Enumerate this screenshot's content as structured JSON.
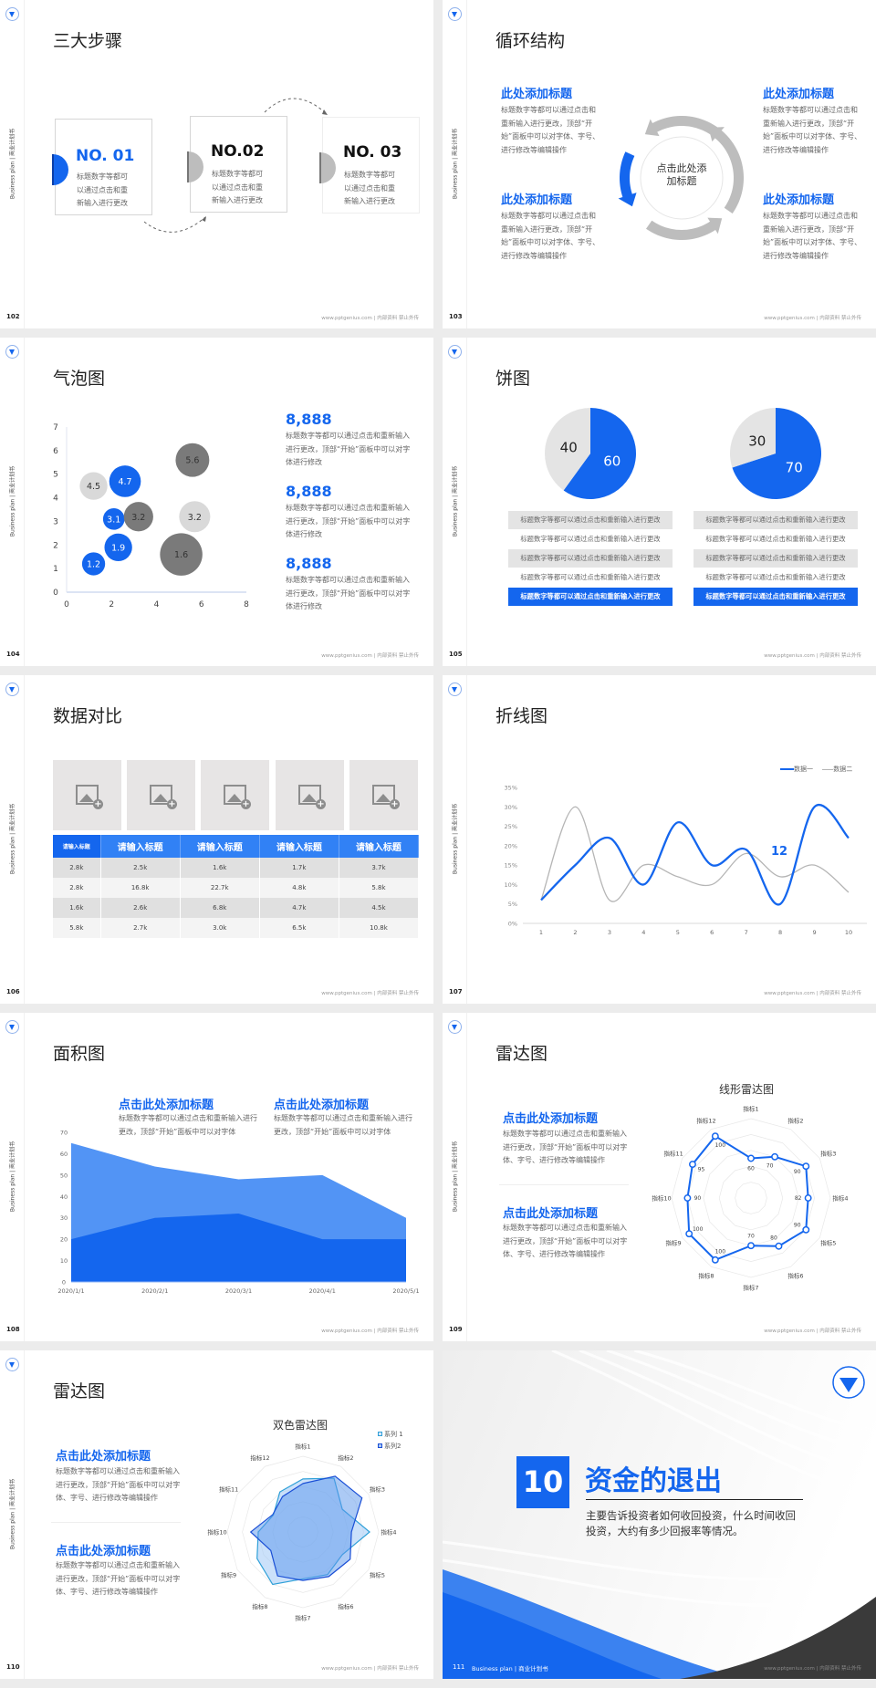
{
  "common": {
    "side_label": "Business plan | 商业计划书",
    "footer": "www.pptgenius.com | 内部资料 禁止外传",
    "colors": {
      "brand_blue": "#1466ee",
      "gray": "#c8c8c8",
      "dark_gray": "#7a7a7a",
      "page_bg": "#ececec"
    },
    "icons": [
      "university-logo-icon",
      "image-placeholder-icon"
    ]
  },
  "s102": {
    "page": "102",
    "title": "三大步骤",
    "steps": [
      {
        "no": "NO. 01",
        "desc": "标题数字等都可以通过点击和重新输入进行更改",
        "active": true
      },
      {
        "no": "NO.02",
        "desc": "标题数字等都可以通过点击和重新输入进行更改",
        "active": false
      },
      {
        "no": "NO. 03",
        "desc": "标题数字等都可以通过点击和重新输入进行更改",
        "active": false
      }
    ]
  },
  "s103": {
    "page": "103",
    "title": "循环结构",
    "center": "点击此处添加标题",
    "blocks": [
      {
        "heading": "此处添加标题",
        "text": "标题数字等都可以通过点击和重新输入进行更改，顶部“开始”面板中可以对字体、字号、进行修改等编辑操作"
      },
      {
        "heading": "此处添加标题",
        "text": "标题数字等都可以通过点击和重新输入进行更改，顶部“开始”面板中可以对字体、字号、进行修改等编辑操作"
      },
      {
        "heading": "此处添加标题",
        "text": "标题数字等都可以通过点击和重新输入进行更改，顶部“开始”面板中可以对字体、字号、进行修改等编辑操作"
      },
      {
        "heading": "此处添加标题",
        "text": "标题数字等都可以通过点击和重新输入进行更改，顶部“开始”面板中可以对字体、字号、进行修改等编辑操作"
      }
    ]
  },
  "s104": {
    "page": "104",
    "title": "气泡图",
    "stats": [
      {
        "value": "8,888",
        "text": "标题数字等都可以通过点击和重新输入进行更改，顶部“开始”面板中可以对字体进行修改"
      },
      {
        "value": "8,888",
        "text": "标题数字等都可以通过点击和重新输入进行更改，顶部“开始”面板中可以对字体进行修改"
      },
      {
        "value": "8,888",
        "text": "标题数字等都可以通过点击和重新输入进行更改，顶部“开始”面板中可以对字体进行修改"
      }
    ]
  },
  "s105": {
    "page": "105",
    "title": "饼图",
    "lists": [
      [
        "标题数字等都可以通过点击和重新输入进行更改",
        "标题数字等都可以通过点击和重新输入进行更改",
        "标题数字等都可以通过点击和重新输入进行更改",
        "标题数字等都可以通过点击和重新输入进行更改",
        "标题数字等都可以通过点击和重新输入进行更改"
      ],
      [
        "标题数字等都可以通过点击和重新输入进行更改",
        "标题数字等都可以通过点击和重新输入进行更改",
        "标题数字等都可以通过点击和重新输入进行更改",
        "标题数字等都可以通过点击和重新输入进行更改",
        "标题数字等都可以通过点击和重新输入进行更改"
      ]
    ]
  },
  "s106": {
    "page": "106",
    "title": "数据对比",
    "headers": [
      "请输入标题",
      "请输入标题",
      "请输入标题",
      "请输入标题",
      "请输入标题"
    ],
    "rows": [
      [
        "2.8k",
        "2.5k",
        "1.6k",
        "1.7k",
        "3.7k"
      ],
      [
        "2.8k",
        "16.8k",
        "22.7k",
        "4.8k",
        "5.8k"
      ],
      [
        "1.6k",
        "2.6k",
        "6.8k",
        "4.7k",
        "4.5k"
      ],
      [
        "5.8k",
        "2.7k",
        "3.0k",
        "6.5k",
        "10.8k"
      ]
    ]
  },
  "s107": {
    "page": "107",
    "title": "折线图",
    "annotation": "12"
  },
  "s108": {
    "page": "108",
    "title": "面积图",
    "blocks": [
      {
        "heading": "点击此处添加标题",
        "text": "标题数字等都可以通过点击和重新输入进行更改，顶部“开始”面板中可以对字体"
      },
      {
        "heading": "点击此处添加标题",
        "text": "标题数字等都可以通过点击和重新输入进行更改，顶部“开始”面板中可以对字体"
      }
    ]
  },
  "s109": {
    "page": "109",
    "title": "雷达图",
    "blocks": [
      {
        "heading": "点击此处添加标题",
        "text": "标题数字等都可以通过点击和重新输入进行更改，顶部“开始”面板中可以对字体、字号、进行修改等编辑操作"
      },
      {
        "heading": "点击此处添加标题",
        "text": "标题数字等都可以通过点击和重新输入进行更改，顶部“开始”面板中可以对字体、字号、进行修改等编辑操作"
      }
    ]
  },
  "s110": {
    "page": "110",
    "title": "雷达图",
    "blocks": [
      {
        "heading": "点击此处添加标题",
        "text": "标题数字等都可以通过点击和重新输入进行更改，顶部“开始”面板中可以对字体、字号、进行修改等编辑操作"
      },
      {
        "heading": "点击此处添加标题",
        "text": "标题数字等都可以通过点击和重新输入进行更改，顶部“开始”面板中可以对字体、字号、进行修改等编辑操作"
      }
    ]
  },
  "s111": {
    "page": "111",
    "number": "10",
    "title": "资金的退出",
    "desc": "主要告诉投资者如何收回投资，什么时间收回投资，大约有多少回报率等情况。",
    "footer_label": "Business plan | 商业计划书"
  },
  "chart_data": [
    {
      "type": "scatter",
      "subtype": "bubble",
      "xlim": [
        0,
        8
      ],
      "ylim": [
        0,
        7
      ],
      "xticks": [
        0,
        2,
        4,
        6,
        8
      ],
      "yticks": [
        0,
        1,
        2,
        3,
        4,
        5,
        6,
        7
      ],
      "points": [
        {
          "x": 1.2,
          "y": 1.2,
          "size": 1.6,
          "label": "1.2",
          "color": "#1466ee"
        },
        {
          "x": 2.3,
          "y": 1.9,
          "size": 2.3,
          "label": "1.9",
          "color": "#1466ee"
        },
        {
          "x": 2.1,
          "y": 3.1,
          "size": 1.4,
          "label": "3.1",
          "color": "#1466ee"
        },
        {
          "x": 2.6,
          "y": 4.7,
          "size": 3.0,
          "label": "4.7",
          "color": "#1466ee"
        },
        {
          "x": 1.2,
          "y": 4.5,
          "size": 2.3,
          "label": "4.5",
          "color": "#d9d9d9"
        },
        {
          "x": 3.2,
          "y": 3.2,
          "size": 2.6,
          "label": "3.2",
          "color": "#7a7a7a"
        },
        {
          "x": 5.6,
          "y": 5.6,
          "size": 3.4,
          "label": "5.6",
          "color": "#7a7a7a"
        },
        {
          "x": 5.7,
          "y": 3.2,
          "size": 2.9,
          "label": "3.2",
          "color": "#d9d9d9"
        },
        {
          "x": 5.1,
          "y": 1.6,
          "size": 5.4,
          "label": "1.6",
          "color": "#7a7a7a"
        }
      ]
    },
    {
      "type": "pie",
      "values": [
        60,
        40
      ],
      "labels": [
        "60",
        "40"
      ],
      "colors": [
        "#1466ee",
        "#e4e4e4"
      ]
    },
    {
      "type": "pie",
      "values": [
        70,
        30
      ],
      "labels": [
        "70",
        "30"
      ],
      "colors": [
        "#1466ee",
        "#e4e4e4"
      ]
    },
    {
      "type": "line",
      "x": [
        1,
        2,
        3,
        4,
        5,
        6,
        7,
        8,
        9,
        10
      ],
      "ylim": [
        0,
        35
      ],
      "yticks": [
        "0%",
        "5%",
        "10%",
        "15%",
        "20%",
        "25%",
        "30%",
        "35%"
      ],
      "legend": "top-right",
      "series": [
        {
          "name": "数据一",
          "values": [
            6,
            15,
            22,
            10,
            26,
            15,
            19,
            5,
            30,
            22
          ],
          "color": "#1466ee"
        },
        {
          "name": "数据二",
          "values": [
            6,
            30,
            6,
            15,
            12,
            10,
            18,
            12,
            15,
            8
          ],
          "color": "#b5b5b5"
        }
      ]
    },
    {
      "type": "area",
      "categories": [
        "2020/1/1",
        "2020/2/1",
        "2020/3/1",
        "2020/4/1",
        "2020/5/1"
      ],
      "ylim": [
        0,
        70
      ],
      "yticks": [
        0,
        10,
        20,
        30,
        40,
        50,
        60,
        70
      ],
      "series": [
        {
          "values": [
            65,
            54,
            48,
            50,
            30
          ],
          "color": "#5294f5"
        },
        {
          "values": [
            20,
            30,
            32,
            20,
            20
          ],
          "color": "#1466ee"
        }
      ]
    },
    {
      "type": "radar",
      "title": "线形雷达图",
      "axes": [
        "指标1",
        "指标2",
        "指标3",
        "指标4",
        "指标5",
        "指标6",
        "指标7",
        "指标8",
        "指标9",
        "指标10",
        "指标11",
        "指标12"
      ],
      "series": [
        {
          "values": [
            60,
            70,
            90,
            82,
            90,
            80,
            70,
            100,
            100,
            90,
            95,
            100
          ],
          "color": "#1466ee"
        }
      ]
    },
    {
      "type": "radar",
      "title": "双色雷达图",
      "legend": "top-right",
      "axes": [
        "指标1",
        "指标2",
        "指标3",
        "指标4",
        "指标5",
        "指标6",
        "指标7",
        "指标8",
        "指标9",
        "指标10",
        "指标11",
        "指标12"
      ],
      "series": [
        {
          "name": "系列 1",
          "values": [
            70,
            82,
            60,
            88,
            60,
            65,
            62,
            80,
            70,
            59,
            45,
            61
          ],
          "color": "#2fa0d8"
        },
        {
          "name": "系列2",
          "values": [
            64,
            85,
            90,
            64,
            72,
            68,
            64,
            67,
            49,
            69,
            46,
            54
          ],
          "color": "#1a4fd6"
        }
      ]
    }
  ]
}
